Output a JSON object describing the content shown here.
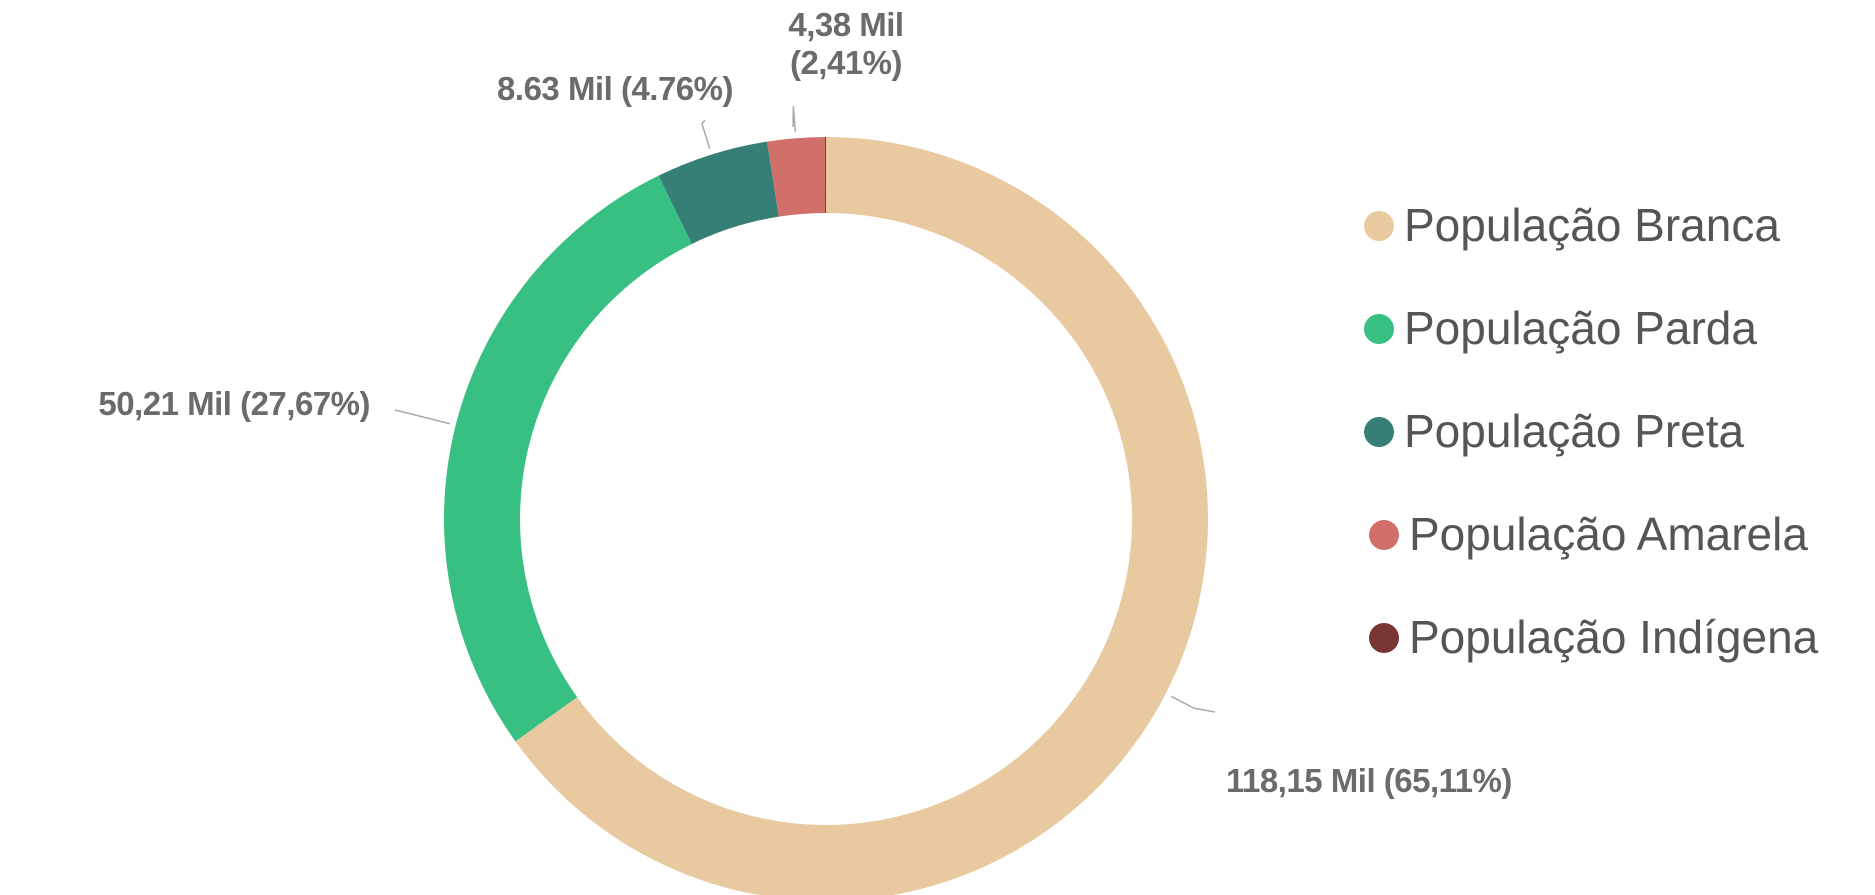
{
  "chart_data": {
    "type": "donut",
    "categories": [
      "População Branca",
      "População Parda",
      "População Preta",
      "População Amarela",
      "População Indígena"
    ],
    "values": [
      118.15,
      50.21,
      8.63,
      4.38,
      0.09
    ],
    "value_labels": [
      "118,15 Mil (65,11%)",
      "50,21 Mil (27,67%)",
      "8.63 Mil (4.76%)",
      "4,38 Mil (2,41%)",
      null
    ],
    "colors": [
      "#E8C9A0",
      "#37C081",
      "#357F77",
      "#D1706B",
      "#7A3535"
    ],
    "legend": "right"
  }
}
